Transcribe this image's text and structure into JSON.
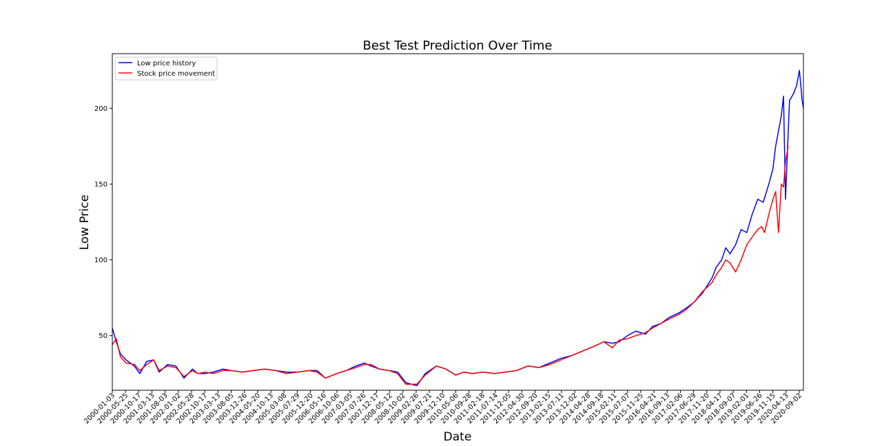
{
  "chart_data": {
    "type": "line",
    "title": "Best Test Prediction Over Time",
    "xlabel": "Date",
    "ylabel": "Low Price",
    "xlim": [
      "2000-01-03",
      "2020-10-15"
    ],
    "ylim": [
      14,
      236
    ],
    "yticks": [
      50,
      100,
      150,
      200
    ],
    "xtick_labels": [
      "2000-01-03",
      "2000-05-25",
      "2000-10-17",
      "2001-03-13",
      "2001-08-03",
      "2002-01-02",
      "2002-05-28",
      "2002-10-17",
      "2003-03-13",
      "2003-08-05",
      "2003-12-26",
      "2004-05-20",
      "2004-10-13",
      "2005-03-08",
      "2005-07-29",
      "2005-12-20",
      "2006-05-16",
      "2006-10-06",
      "2007-03-05",
      "2007-07-26",
      "2007-12-17",
      "2008-05-12",
      "2008-10-02",
      "2009-02-26",
      "2009-07-21",
      "2009-12-10",
      "2010-05-06",
      "2010-09-28",
      "2011-02-18",
      "2011-07-14",
      "2011-12-05",
      "2012-04-30",
      "2012-09-20",
      "2013-02-15",
      "2013-07-11",
      "2013-12-02",
      "2014-04-28",
      "2014-09-18",
      "2015-02-11",
      "2015-07-07",
      "2015-11-25",
      "2016-04-21",
      "2016-09-13",
      "2017-02-06",
      "2017-06-29",
      "2017-11-20",
      "2018-04-17",
      "2018-09-07",
      "2019-02-01",
      "2019-06-26",
      "2019-11-15",
      "2020-04-13",
      "2020-09-02"
    ],
    "legend_placement": "upper-left",
    "grid": false,
    "series": [
      {
        "name": "Low price history",
        "color": "#0000ff",
        "x": [
          "2000-01-03",
          "2000-02-15",
          "2000-04-01",
          "2000-06-01",
          "2000-09-01",
          "2000-11-01",
          "2001-01-15",
          "2001-04-01",
          "2001-06-01",
          "2001-09-01",
          "2001-12-01",
          "2002-03-01",
          "2002-06-01",
          "2002-08-01",
          "2002-10-15",
          "2003-01-15",
          "2003-05-01",
          "2003-08-01",
          "2003-12-01",
          "2004-04-01",
          "2004-08-01",
          "2004-12-01",
          "2005-04-01",
          "2005-08-01",
          "2005-12-01",
          "2006-03-01",
          "2006-06-01",
          "2006-10-01",
          "2007-01-15",
          "2007-05-01",
          "2007-08-01",
          "2007-10-15",
          "2008-01-15",
          "2008-05-01",
          "2008-08-01",
          "2008-11-01",
          "2009-03-01",
          "2009-06-01",
          "2009-10-01",
          "2010-01-15",
          "2010-05-01",
          "2010-08-01",
          "2010-11-01",
          "2011-03-01",
          "2011-07-01",
          "2011-11-01",
          "2012-03-01",
          "2012-07-01",
          "2012-11-01",
          "2013-03-01",
          "2013-07-01",
          "2013-11-01",
          "2014-03-01",
          "2014-07-01",
          "2014-10-15",
          "2015-01-15",
          "2015-04-01",
          "2015-07-01",
          "2015-10-01",
          "2016-01-15",
          "2016-04-01",
          "2016-07-01",
          "2016-10-01",
          "2017-01-15",
          "2017-04-01",
          "2017-07-01",
          "2017-10-01",
          "2018-01-15",
          "2018-03-01",
          "2018-05-01",
          "2018-06-15",
          "2018-08-01",
          "2018-10-01",
          "2018-12-01",
          "2019-02-01",
          "2019-04-01",
          "2019-06-01",
          "2019-08-01",
          "2019-10-01",
          "2019-11-15",
          "2019-12-15",
          "2020-01-15",
          "2020-02-15",
          "2020-03-10",
          "2020-04-01",
          "2020-05-15",
          "2020-07-01",
          "2020-08-01",
          "2020-09-01",
          "2020-10-01",
          "2020-10-15"
        ],
        "values": [
          55,
          46,
          38,
          34,
          30,
          25,
          33,
          34,
          26,
          31,
          30,
          22,
          28,
          25,
          25,
          26,
          28,
          27,
          26,
          27,
          28,
          27,
          26,
          26,
          27,
          27,
          22,
          25,
          27,
          30,
          32,
          30,
          28,
          27,
          26,
          19,
          17,
          25,
          30,
          28,
          24,
          26,
          25,
          26,
          25,
          26,
          27,
          30,
          29,
          32,
          35,
          37,
          40,
          43,
          46,
          45,
          46,
          50,
          53,
          51,
          56,
          58,
          62,
          65,
          68,
          72,
          78,
          88,
          95,
          100,
          108,
          104,
          110,
          120,
          118,
          130,
          140,
          138,
          150,
          160,
          175,
          185,
          195,
          208,
          140,
          205,
          210,
          215,
          225,
          205,
          200
        ]
      },
      {
        "name": "Stock price movement",
        "color": "#ff0000",
        "x": [
          "2000-01-03",
          "2000-02-15",
          "2000-04-01",
          "2000-06-01",
          "2000-09-01",
          "2000-11-01",
          "2001-01-15",
          "2001-04-01",
          "2001-06-01",
          "2001-09-01",
          "2001-12-01",
          "2002-03-01",
          "2002-06-01",
          "2002-08-01",
          "2002-10-15",
          "2003-01-15",
          "2003-05-01",
          "2003-08-01",
          "2003-12-01",
          "2004-04-01",
          "2004-08-01",
          "2004-12-01",
          "2005-04-01",
          "2005-08-01",
          "2005-12-01",
          "2006-03-01",
          "2006-06-01",
          "2006-10-01",
          "2007-01-15",
          "2007-05-01",
          "2007-08-01",
          "2007-10-15",
          "2008-01-15",
          "2008-05-01",
          "2008-08-01",
          "2008-11-01",
          "2009-03-01",
          "2009-06-01",
          "2009-10-01",
          "2010-01-15",
          "2010-05-01",
          "2010-08-01",
          "2010-11-01",
          "2011-03-01",
          "2011-07-01",
          "2011-11-01",
          "2012-03-01",
          "2012-07-01",
          "2012-11-01",
          "2013-03-01",
          "2013-07-01",
          "2013-11-01",
          "2014-03-01",
          "2014-07-01",
          "2014-10-15",
          "2015-01-15",
          "2015-04-01",
          "2015-07-01",
          "2015-10-01",
          "2016-01-15",
          "2016-04-01",
          "2016-07-01",
          "2016-10-01",
          "2017-01-15",
          "2017-04-01",
          "2017-07-01",
          "2017-10-01",
          "2018-01-15",
          "2018-03-01",
          "2018-05-01",
          "2018-06-15",
          "2018-08-01",
          "2018-10-01",
          "2018-12-01",
          "2019-02-01",
          "2019-04-01",
          "2019-06-01",
          "2019-07-15",
          "2019-08-15",
          "2019-10-01",
          "2019-11-15",
          "2019-12-15",
          "2020-01-15",
          "2020-02-15",
          "2020-03-10",
          "2020-04-01",
          "2020-05-01"
        ],
        "values": [
          44,
          48,
          36,
          32,
          31,
          27,
          31,
          34,
          27,
          30,
          29,
          23,
          27,
          25,
          26,
          25,
          27,
          27,
          26,
          27,
          28,
          27,
          25,
          26,
          27,
          26,
          22,
          25,
          27,
          29,
          31,
          31,
          28,
          27,
          25,
          18,
          18,
          24,
          30,
          28,
          24,
          26,
          25,
          26,
          25,
          26,
          27,
          30,
          29,
          31,
          34,
          37,
          40,
          43,
          46,
          42,
          47,
          48,
          50,
          52,
          55,
          58,
          61,
          64,
          67,
          72,
          79,
          85,
          90,
          95,
          100,
          98,
          92,
          100,
          110,
          115,
          120,
          122,
          118,
          130,
          140,
          145,
          118,
          150,
          148,
          165,
          175
        ]
      }
    ]
  }
}
